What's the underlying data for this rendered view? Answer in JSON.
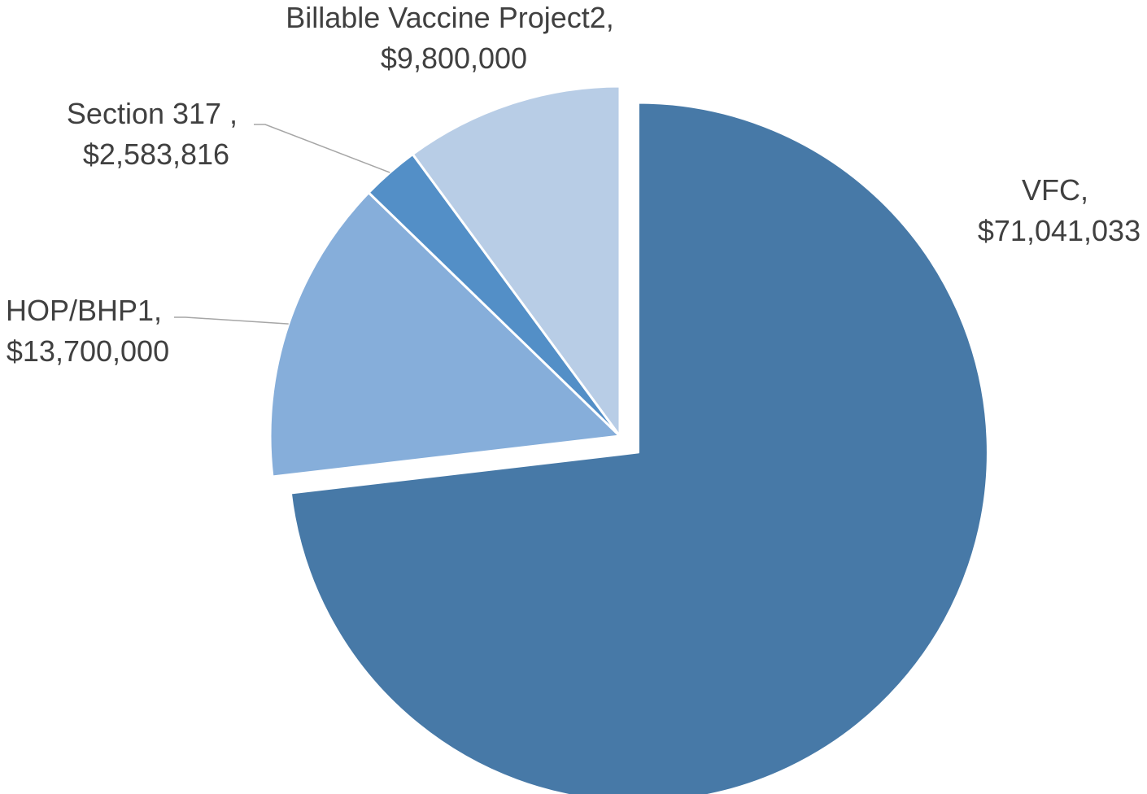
{
  "chart_data": {
    "type": "pie",
    "title": "",
    "series": [
      {
        "values": [
          71041033,
          13700000,
          2583816,
          9800000
        ]
      }
    ],
    "categories": [
      "VFC",
      "HOP/BHP1",
      "Section 317 ",
      "Billable Vaccine Project2"
    ],
    "slices": [
      {
        "name": "VFC",
        "value": 71041033,
        "label_name": "VFC,",
        "label_value": "$71,041,033",
        "color": "#4779A7",
        "exploded": true
      },
      {
        "name": "HOP/BHP1",
        "value": 13700000,
        "label_name": "HOP/BHP1,",
        "label_value": "$13,700,000",
        "color": "#86AEDA",
        "exploded": false
      },
      {
        "name": "Section 317 ",
        "value": 2583816,
        "label_name": "Section 317 ,",
        "label_value": "$2,583,816",
        "color": "#538FC7",
        "exploded": false
      },
      {
        "name": "Billable Vaccine Project2",
        "value": 9800000,
        "label_name": "Billable Vaccine Project2,",
        "label_value": "$9,800,000",
        "color": "#B8CDE6",
        "exploded": false
      }
    ],
    "start_angle": "12 o'clock",
    "direction": "clockwise",
    "legend": "none",
    "data_labels": "outside"
  }
}
